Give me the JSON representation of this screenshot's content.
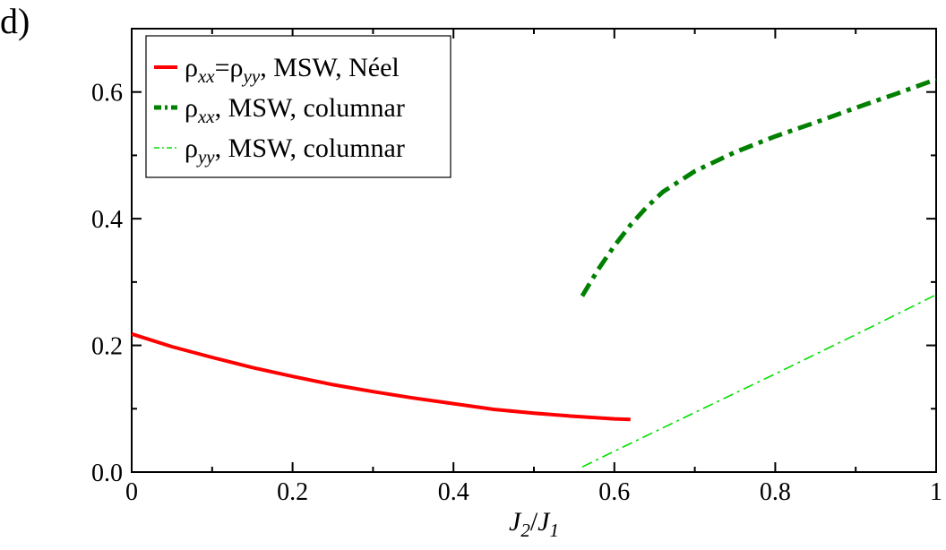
{
  "chart_data": {
    "type": "line",
    "panel_label": "d)",
    "title": "",
    "xlabel": {
      "main1": "J",
      "sub1": "2",
      "slash": "/",
      "main2": "J",
      "sub2": "1"
    },
    "ylabel": "",
    "xlim": [
      0,
      1
    ],
    "ylim": [
      0,
      0.7
    ],
    "xticks": [
      {
        "value": 0,
        "label": "0"
      },
      {
        "value": 0.2,
        "label": "0.2"
      },
      {
        "value": 0.4,
        "label": "0.4"
      },
      {
        "value": 0.6,
        "label": "0.6"
      },
      {
        "value": 0.8,
        "label": "0.8"
      },
      {
        "value": 1,
        "label": "1"
      }
    ],
    "yticks": [
      {
        "value": 0,
        "label": "0.0"
      },
      {
        "value": 0.2,
        "label": "0.2"
      },
      {
        "value": 0.4,
        "label": "0.4"
      },
      {
        "value": 0.6,
        "label": "0.6"
      }
    ],
    "grid": false,
    "legend_position": "top-left",
    "series": [
      {
        "name": "rho-xx-eq-rho-yy-neel",
        "label_parts": [
          "ρ",
          "xx",
          "=ρ",
          "yy",
          ", MSW, Néel"
        ],
        "color": "#ff0000",
        "style": "solid",
        "x": [
          0,
          0.05,
          0.1,
          0.15,
          0.2,
          0.25,
          0.3,
          0.35,
          0.4,
          0.45,
          0.5,
          0.55,
          0.6,
          0.62
        ],
        "y": [
          0.218,
          0.198,
          0.181,
          0.165,
          0.151,
          0.138,
          0.127,
          0.117,
          0.108,
          0.099,
          0.093,
          0.088,
          0.084,
          0.083
        ]
      },
      {
        "name": "rho-xx-columnar",
        "label_parts": [
          "ρ",
          "xx",
          ", MSW, columnar"
        ],
        "color": "#008000",
        "style": "thick-dashdot",
        "x": [
          0.56,
          0.58,
          0.6,
          0.62,
          0.64,
          0.66,
          0.7,
          0.75,
          0.8,
          0.85,
          0.9,
          0.95,
          1.0
        ],
        "y": [
          0.278,
          0.32,
          0.357,
          0.39,
          0.418,
          0.442,
          0.475,
          0.505,
          0.53,
          0.552,
          0.575,
          0.597,
          0.62
        ]
      },
      {
        "name": "rho-yy-columnar",
        "label_parts": [
          "ρ",
          "yy",
          ", MSW, columnar"
        ],
        "color": "#00e000",
        "style": "thin-dashdot",
        "x": [
          0.56,
          0.6,
          0.7,
          0.8,
          0.9,
          1.0
        ],
        "y": [
          0.008,
          0.033,
          0.094,
          0.155,
          0.217,
          0.28
        ]
      }
    ]
  }
}
